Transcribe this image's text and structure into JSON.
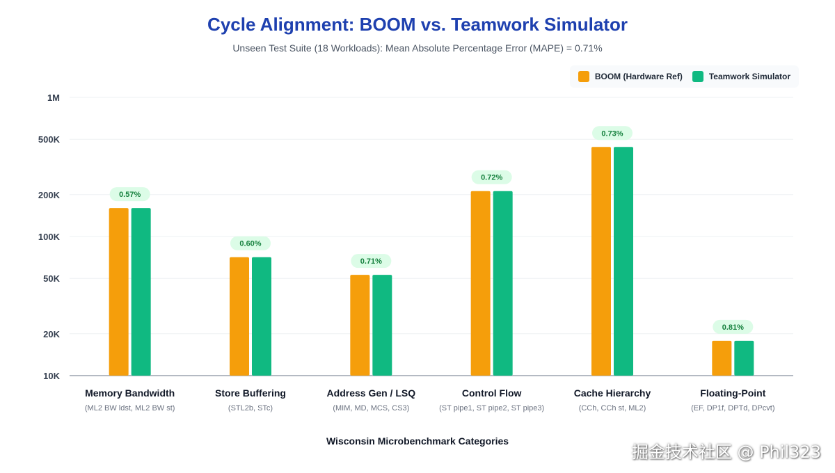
{
  "chart_data": {
    "type": "bar",
    "title": "Cycle Alignment: BOOM vs. Teamwork Simulator",
    "subtitle": "Unseen Test Suite (18 Workloads): Mean Absolute Percentage Error (MAPE) = 0.71%",
    "xlabel": "Wisconsin Microbenchmark Categories",
    "ylabel": "",
    "yscale": "log",
    "ylim": [
      10000,
      1000000
    ],
    "yticks": [
      {
        "value": 10000,
        "label": "10K"
      },
      {
        "value": 20000,
        "label": "20K"
      },
      {
        "value": 50000,
        "label": "50K"
      },
      {
        "value": 100000,
        "label": "100K"
      },
      {
        "value": 200000,
        "label": "200K"
      },
      {
        "value": 500000,
        "label": "500K"
      },
      {
        "value": 1000000,
        "label": "1M"
      }
    ],
    "grid": true,
    "legend_position": "top-right",
    "categories": [
      "Memory Bandwidth",
      "Store Buffering",
      "Address Gen / LSQ",
      "Control Flow",
      "Cache Hierarchy",
      "Floating-Point"
    ],
    "category_sublabels": [
      "(ML2 BW ldst, ML2 BW st)",
      "(STL2b, STc)",
      "(MIM, MD, MCS, CS3)",
      "(ST pipe1, ST pipe2, ST pipe3)",
      "(CCh, CCh st, ML2)",
      "(EF, DP1f, DPTd, DPcvt)"
    ],
    "series": [
      {
        "name": "BOOM (Hardware Ref)",
        "color": "#f59e0b",
        "values": [
          160000,
          71000,
          53000,
          212000,
          440000,
          17800
        ]
      },
      {
        "name": "Teamwork Simulator",
        "color": "#10b981",
        "values": [
          160000,
          71000,
          53000,
          212000,
          440000,
          17800
        ]
      }
    ],
    "annotations": [
      "0.57%",
      "0.60%",
      "0.71%",
      "0.72%",
      "0.73%",
      "0.81%"
    ]
  },
  "watermark": "掘金技术社区 @ Phil323"
}
